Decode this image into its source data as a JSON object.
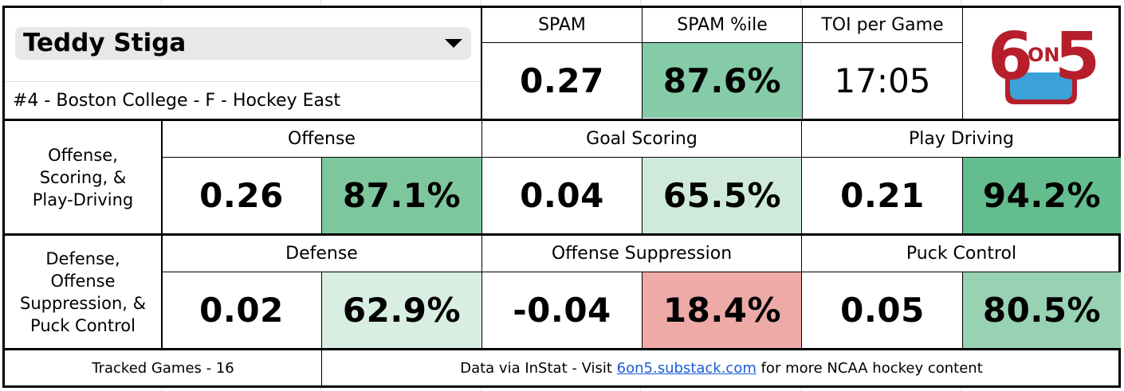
{
  "player": {
    "name": "Teddy Stiga",
    "info": "#4 - Boston College - F - Hockey East"
  },
  "summary": {
    "spam_label": "SPAM",
    "spam_value": "0.27",
    "spam_pct_label": "SPAM %ile",
    "spam_pct_value": "87.6%",
    "spam_pct_color": "#86cba7",
    "toi_label": "TOI per Game",
    "toi_value": "17:05"
  },
  "logo": {
    "text_6": "6",
    "text_on": "ON",
    "text_5": "5",
    "color_red": "#b51e2a",
    "color_blue": "#3aa2d8"
  },
  "rows": [
    {
      "label_lines": [
        "Offense,",
        "Scoring, &",
        "Play-Driving"
      ],
      "metrics": [
        {
          "header": "Offense",
          "value": "0.26",
          "pct": "87.1%",
          "color": "#7ec79e"
        },
        {
          "header": "Goal Scoring",
          "value": "0.04",
          "pct": "65.5%",
          "color": "#cfeadb"
        },
        {
          "header": "Play Driving",
          "value": "0.21",
          "pct": "94.2%",
          "color": "#64bd8e"
        }
      ]
    },
    {
      "label_lines": [
        "Defense,",
        "Offense",
        "Suppression, &",
        "Puck Control"
      ],
      "metrics": [
        {
          "header": "Defense",
          "value": "0.02",
          "pct": "62.9%",
          "color": "#d8eee2"
        },
        {
          "header": "Offense Suppression",
          "value": "-0.04",
          "pct": "18.4%",
          "color": "#eeaaa7"
        },
        {
          "header": "Puck Control",
          "value": "0.05",
          "pct": "80.5%",
          "color": "#97d2b3"
        }
      ]
    }
  ],
  "footer": {
    "games": "Tracked Games - 16",
    "data_prefix": "Data via InStat - Visit ",
    "link_text": "6on5.substack.com",
    "data_suffix": " for more NCAA hockey content"
  }
}
